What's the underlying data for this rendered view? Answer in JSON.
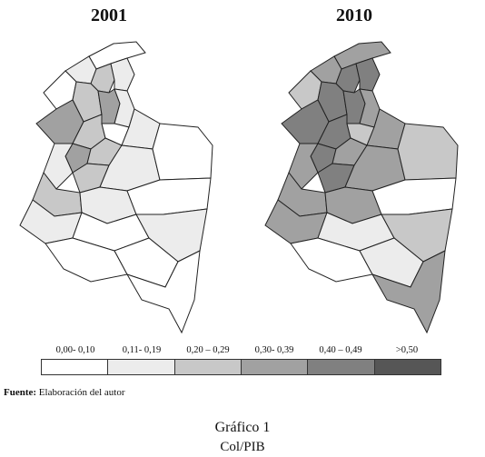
{
  "maps": [
    {
      "title": "2001",
      "region_classes": [
        0,
        1,
        2,
        1,
        0,
        2,
        3,
        1,
        3,
        2,
        0,
        1,
        3,
        2,
        1,
        2,
        1,
        0,
        2,
        1,
        0,
        1,
        0,
        1,
        0,
        0,
        0
      ]
    },
    {
      "title": "2010",
      "region_classes": [
        3,
        3,
        4,
        4,
        2,
        4,
        4,
        3,
        4,
        4,
        2,
        3,
        4,
        3,
        3,
        4,
        3,
        2,
        3,
        3,
        0,
        3,
        1,
        2,
        0,
        1,
        3
      ]
    }
  ],
  "legend": {
    "labels": [
      "0,00- 0,10",
      "0,11- 0,19",
      "0,20 – 0,29",
      "0,30- 0,39",
      "0,40 – 0,49",
      ">0,50"
    ],
    "colors": [
      "#ffffff",
      "#ececec",
      "#c8c8c8",
      "#a1a1a1",
      "#808080",
      "#565656"
    ]
  },
  "source": {
    "prefix": "Fuente:",
    "text": " Elaboración del autor"
  },
  "figure": {
    "title": "Gráfico 1",
    "subtitle": "Col/PIB"
  }
}
